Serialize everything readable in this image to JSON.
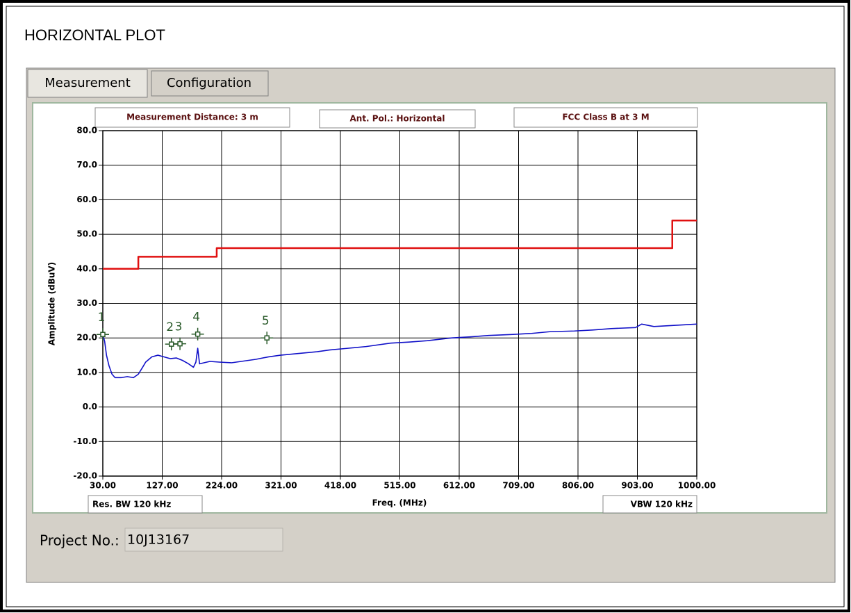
{
  "page_title": "HORIZONTAL PLOT",
  "tabs": [
    "Measurement",
    "Configuration"
  ],
  "chart_data": {
    "type": "line",
    "annotations": [
      "Measurement Distance: 3 m",
      "Ant. Pol.: Horizontal",
      "FCC Class B at 3 M"
    ],
    "y_label": "Amplitude (dBuV)",
    "x_label": "Freq. (MHz)",
    "footer_left": "Res. BW 120 kHz",
    "footer_right": "VBW 120 kHz",
    "xlim": [
      30,
      1000
    ],
    "ylim": [
      -20,
      80
    ],
    "xticks": [
      {
        "value": 30,
        "label": "30.00"
      },
      {
        "value": 127,
        "label": "127.00"
      },
      {
        "value": 224,
        "label": "224.00"
      },
      {
        "value": 321,
        "label": "321.00"
      },
      {
        "value": 418,
        "label": "418.00"
      },
      {
        "value": 515,
        "label": "515.00"
      },
      {
        "value": 612,
        "label": "612.00"
      },
      {
        "value": 709,
        "label": "709.00"
      },
      {
        "value": 806,
        "label": "806.00"
      },
      {
        "value": 903,
        "label": "903.00"
      },
      {
        "value": 1000,
        "label": "1000.00"
      }
    ],
    "yticks": [
      {
        "value": 80,
        "label": "80.0"
      },
      {
        "value": 70,
        "label": "70.0"
      },
      {
        "value": 60,
        "label": "60.0"
      },
      {
        "value": 50,
        "label": "50.0"
      },
      {
        "value": 40,
        "label": "40.0"
      },
      {
        "value": 30,
        "label": "30.0"
      },
      {
        "value": 20,
        "label": "20.0"
      },
      {
        "value": 10,
        "label": "10.0"
      },
      {
        "value": 0,
        "label": "0.0"
      },
      {
        "value": -10,
        "label": "-10.0"
      },
      {
        "value": -20,
        "label": "-20.0"
      }
    ],
    "grid": true,
    "series": [
      {
        "color": "#e01010",
        "x": [
          30,
          88,
          88,
          216,
          216,
          960,
          960,
          1000
        ],
        "values": [
          40,
          40,
          43.5,
          43.5,
          46,
          46,
          54,
          54
        ]
      },
      {
        "color": "#1010c8",
        "x": [
          30,
          33,
          36,
          40,
          45,
          50,
          60,
          70,
          80,
          88,
          95,
          100,
          110,
          120,
          130,
          140,
          150,
          160,
          170,
          178,
          182,
          185,
          188,
          195,
          205,
          220,
          240,
          260,
          280,
          300,
          320,
          350,
          380,
          400,
          430,
          460,
          500,
          530,
          560,
          600,
          630,
          660,
          700,
          730,
          760,
          800,
          830,
          860,
          900,
          910,
          930,
          960,
          1000
        ],
        "values": [
          21,
          19,
          15,
          12,
          9.5,
          8.5,
          8.5,
          8.8,
          8.5,
          9.5,
          11.5,
          13,
          14.5,
          15,
          14.5,
          14,
          14.2,
          13.5,
          12.5,
          11.5,
          13,
          17,
          12.5,
          12.8,
          13.2,
          13,
          12.8,
          13.3,
          13.8,
          14.5,
          15,
          15.5,
          16,
          16.5,
          17,
          17.5,
          18.5,
          18.8,
          19.2,
          20,
          20.3,
          20.7,
          21,
          21.3,
          21.8,
          22,
          22.3,
          22.7,
          23,
          24,
          23.3,
          23.6,
          24
        ]
      }
    ],
    "markers": [
      {
        "label": "1",
        "x": 30,
        "y": 21
      },
      {
        "label": "2",
        "x": 142,
        "y": 18.2
      },
      {
        "label": "3",
        "x": 156,
        "y": 18.3
      },
      {
        "label": "4",
        "x": 185,
        "y": 21.1
      },
      {
        "label": "5",
        "x": 298,
        "y": 20
      }
    ]
  },
  "project": {
    "label": "Project No.:",
    "value": "10J13167"
  }
}
